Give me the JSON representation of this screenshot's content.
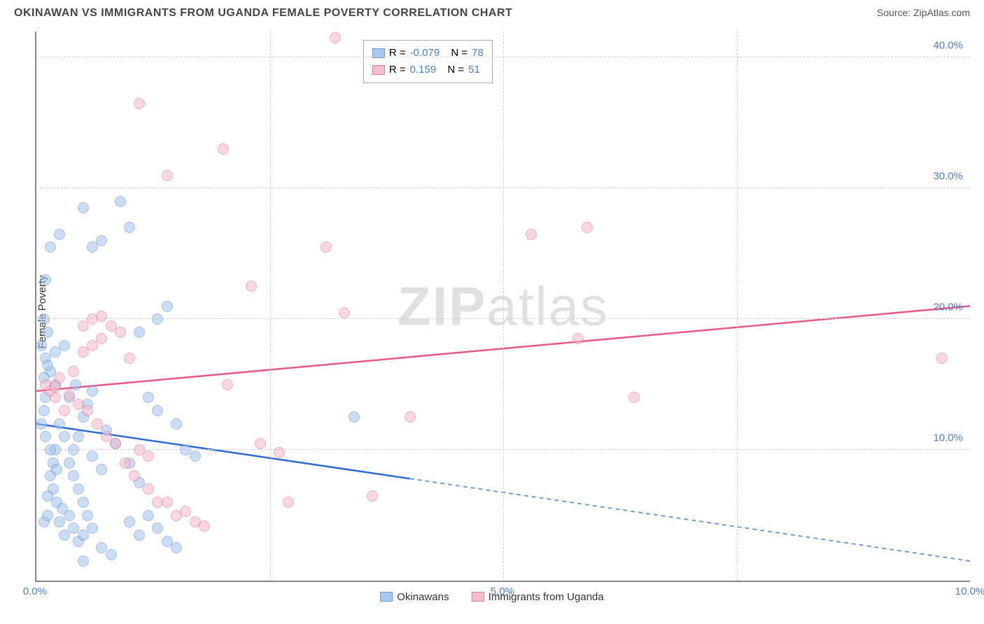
{
  "title": "OKINAWAN VS IMMIGRANTS FROM UGANDA FEMALE POVERTY CORRELATION CHART",
  "source_label": "Source: ",
  "source_site": "ZipAtlas.com",
  "watermark_a": "ZIP",
  "watermark_b": "atlas",
  "ylabel": "Female Poverty",
  "x_axis": {
    "min": 0.0,
    "max": 10.0,
    "ticks": [
      0.0,
      5.0,
      10.0
    ],
    "tick_labels": [
      "0.0%",
      "5.0%",
      "10.0%"
    ]
  },
  "y_axis": {
    "min": 0.0,
    "max": 42.0,
    "ticks": [
      10.0,
      20.0,
      30.0,
      40.0
    ],
    "tick_labels": [
      "10.0%",
      "20.0%",
      "30.0%",
      "40.0%"
    ]
  },
  "x_gridlines": [
    2.5,
    5.0,
    7.5
  ],
  "series": [
    {
      "name": "Okinawans",
      "fill": "#9fc2ea",
      "stroke": "#5d8dd6",
      "fill_opacity": 0.55,
      "marker_radius": 8,
      "R_label": "R =",
      "N_label": "N =",
      "R": "-0.079",
      "N": "78",
      "trend": {
        "y_at_x0": 12.0,
        "y_at_x10": 1.5,
        "solid_until_x": 4.0,
        "solid_color": "#2e6bd1",
        "dash_color": "#6f9bdc",
        "width": 2.5
      },
      "points": [
        {
          "x": 0.05,
          "y": 18
        },
        {
          "x": 0.1,
          "y": 17
        },
        {
          "x": 0.15,
          "y": 16
        },
        {
          "x": 0.2,
          "y": 15
        },
        {
          "x": 0.1,
          "y": 14
        },
        {
          "x": 0.08,
          "y": 13
        },
        {
          "x": 0.25,
          "y": 12
        },
        {
          "x": 0.3,
          "y": 11
        },
        {
          "x": 0.2,
          "y": 10
        },
        {
          "x": 0.35,
          "y": 9
        },
        {
          "x": 0.4,
          "y": 8
        },
        {
          "x": 0.45,
          "y": 7
        },
        {
          "x": 0.5,
          "y": 6
        },
        {
          "x": 0.55,
          "y": 5
        },
        {
          "x": 0.6,
          "y": 4
        },
        {
          "x": 0.3,
          "y": 3.5
        },
        {
          "x": 0.45,
          "y": 3
        },
        {
          "x": 0.7,
          "y": 2.5
        },
        {
          "x": 0.8,
          "y": 2
        },
        {
          "x": 0.6,
          "y": 9.5
        },
        {
          "x": 0.7,
          "y": 8.5
        },
        {
          "x": 0.75,
          "y": 11.5
        },
        {
          "x": 0.85,
          "y": 10.5
        },
        {
          "x": 1.0,
          "y": 9
        },
        {
          "x": 1.1,
          "y": 7.5
        },
        {
          "x": 1.2,
          "y": 5
        },
        {
          "x": 1.3,
          "y": 4
        },
        {
          "x": 0.5,
          "y": 1.5
        },
        {
          "x": 0.1,
          "y": 23
        },
        {
          "x": 0.15,
          "y": 25.5
        },
        {
          "x": 0.25,
          "y": 26.5
        },
        {
          "x": 0.5,
          "y": 28.5
        },
        {
          "x": 0.6,
          "y": 25.5
        },
        {
          "x": 0.7,
          "y": 26
        },
        {
          "x": 1.0,
          "y": 27
        },
        {
          "x": 1.4,
          "y": 21
        },
        {
          "x": 1.3,
          "y": 20
        },
        {
          "x": 1.1,
          "y": 19
        },
        {
          "x": 1.2,
          "y": 14
        },
        {
          "x": 1.3,
          "y": 13
        },
        {
          "x": 1.5,
          "y": 12
        },
        {
          "x": 1.6,
          "y": 10
        },
        {
          "x": 1.7,
          "y": 9.5
        },
        {
          "x": 1.0,
          "y": 4.5
        },
        {
          "x": 1.1,
          "y": 3.5
        },
        {
          "x": 1.4,
          "y": 3
        },
        {
          "x": 1.5,
          "y": 2.5
        },
        {
          "x": 3.4,
          "y": 12.5
        },
        {
          "x": 0.15,
          "y": 8
        },
        {
          "x": 0.18,
          "y": 7
        },
        {
          "x": 0.22,
          "y": 6
        },
        {
          "x": 0.28,
          "y": 5.5
        },
        {
          "x": 0.35,
          "y": 5
        },
        {
          "x": 0.12,
          "y": 6.5
        },
        {
          "x": 0.4,
          "y": 10
        },
        {
          "x": 0.45,
          "y": 11
        },
        {
          "x": 0.5,
          "y": 12.5
        },
        {
          "x": 0.55,
          "y": 13.5
        },
        {
          "x": 0.6,
          "y": 14.5
        },
        {
          "x": 0.2,
          "y": 17.5
        },
        {
          "x": 0.3,
          "y": 18
        },
        {
          "x": 0.12,
          "y": 19
        },
        {
          "x": 0.08,
          "y": 20
        },
        {
          "x": 0.1,
          "y": 11
        },
        {
          "x": 0.15,
          "y": 10
        },
        {
          "x": 0.18,
          "y": 9
        },
        {
          "x": 0.22,
          "y": 8.5
        },
        {
          "x": 0.05,
          "y": 12
        },
        {
          "x": 0.08,
          "y": 15.5
        },
        {
          "x": 0.12,
          "y": 16.5
        },
        {
          "x": 0.4,
          "y": 4
        },
        {
          "x": 0.5,
          "y": 3.5
        },
        {
          "x": 0.35,
          "y": 14
        },
        {
          "x": 0.42,
          "y": 15
        },
        {
          "x": 0.9,
          "y": 29
        },
        {
          "x": 0.08,
          "y": 4.5
        },
        {
          "x": 0.12,
          "y": 5
        },
        {
          "x": 0.25,
          "y": 4.5
        }
      ]
    },
    {
      "name": "Immigrants from Uganda",
      "fill": "#f3b7c7",
      "stroke": "#e06f94",
      "fill_opacity": 0.55,
      "marker_radius": 8,
      "R_label": "R =",
      "N_label": "N =",
      "R": "0.159",
      "N": "51",
      "trend": {
        "y_at_x0": 14.5,
        "y_at_x10": 21.0,
        "solid_until_x": 10.0,
        "solid_color": "#e5588a",
        "dash_color": "#e5588a",
        "width": 2.5
      },
      "points": [
        {
          "x": 0.1,
          "y": 15
        },
        {
          "x": 0.15,
          "y": 14.5
        },
        {
          "x": 0.2,
          "y": 14
        },
        {
          "x": 0.3,
          "y": 13
        },
        {
          "x": 0.4,
          "y": 16
        },
        {
          "x": 0.5,
          "y": 17.5
        },
        {
          "x": 0.6,
          "y": 18
        },
        {
          "x": 0.7,
          "y": 18.5
        },
        {
          "x": 0.8,
          "y": 19.5
        },
        {
          "x": 0.9,
          "y": 19
        },
        {
          "x": 1.0,
          "y": 17
        },
        {
          "x": 1.1,
          "y": 10
        },
        {
          "x": 1.2,
          "y": 9.5
        },
        {
          "x": 1.4,
          "y": 6
        },
        {
          "x": 1.5,
          "y": 5
        },
        {
          "x": 1.7,
          "y": 4.5
        },
        {
          "x": 1.1,
          "y": 36.5
        },
        {
          "x": 1.4,
          "y": 31
        },
        {
          "x": 2.3,
          "y": 22.5
        },
        {
          "x": 2.6,
          "y": 9.8
        },
        {
          "x": 2.7,
          "y": 6
        },
        {
          "x": 3.1,
          "y": 25.5
        },
        {
          "x": 3.2,
          "y": 41.5
        },
        {
          "x": 3.3,
          "y": 20.5
        },
        {
          "x": 2.0,
          "y": 33
        },
        {
          "x": 2.05,
          "y": 15
        },
        {
          "x": 2.4,
          "y": 10.5
        },
        {
          "x": 3.6,
          "y": 6.5
        },
        {
          "x": 4.0,
          "y": 12.5
        },
        {
          "x": 5.3,
          "y": 26.5
        },
        {
          "x": 5.9,
          "y": 27
        },
        {
          "x": 5.8,
          "y": 18.5
        },
        {
          "x": 6.4,
          "y": 14
        },
        {
          "x": 9.7,
          "y": 17
        },
        {
          "x": 0.2,
          "y": 14.8
        },
        {
          "x": 0.25,
          "y": 15.5
        },
        {
          "x": 0.35,
          "y": 14.2
        },
        {
          "x": 0.45,
          "y": 13.5
        },
        {
          "x": 0.55,
          "y": 13
        },
        {
          "x": 0.65,
          "y": 12
        },
        {
          "x": 0.75,
          "y": 11
        },
        {
          "x": 0.85,
          "y": 10.5
        },
        {
          "x": 0.95,
          "y": 9
        },
        {
          "x": 1.05,
          "y": 8
        },
        {
          "x": 1.2,
          "y": 7
        },
        {
          "x": 1.3,
          "y": 6
        },
        {
          "x": 1.6,
          "y": 5.3
        },
        {
          "x": 1.8,
          "y": 4.2
        },
        {
          "x": 0.5,
          "y": 19.5
        },
        {
          "x": 0.6,
          "y": 20
        },
        {
          "x": 0.7,
          "y": 20.2
        }
      ]
    }
  ],
  "legend_box": {
    "top_pct": 1.5,
    "left_pct": 35
  },
  "bg_color": "#ffffff",
  "grid_color": "#d0d0d0",
  "axis_color": "#888888",
  "tick_text_color": "#4a7ecc"
}
